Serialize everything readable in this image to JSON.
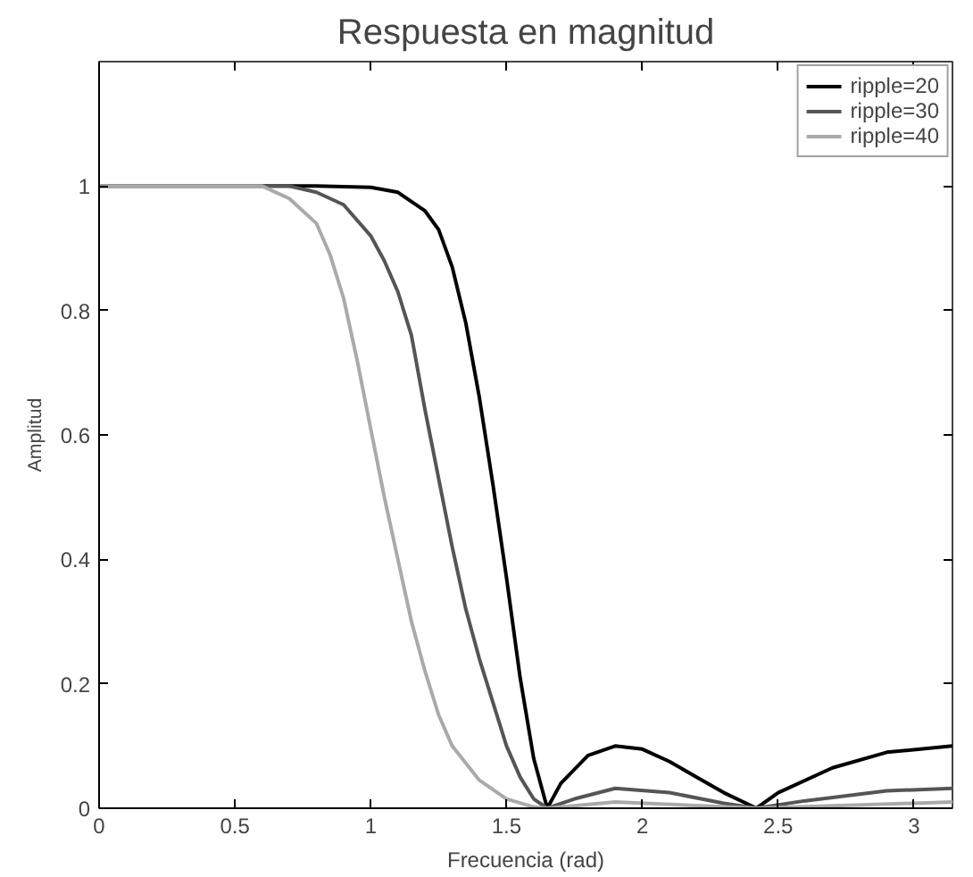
{
  "chart_data": {
    "type": "line",
    "title": "Respuesta en magnitud",
    "xlabel": "Frecuencia (rad)",
    "ylabel": "Amplitud",
    "xlim": [
      0,
      3.1416
    ],
    "ylim": [
      0,
      1.2
    ],
    "xticks": [
      0,
      0.5,
      1,
      1.5,
      2,
      2.5,
      3
    ],
    "yticks": [
      0,
      0.2,
      0.4,
      0.6,
      0.8,
      1
    ],
    "grid": false,
    "legend": "top right",
    "line_style": "solid",
    "marker": "none",
    "series": [
      {
        "name": "ripple=20",
        "color": "#000000",
        "x": [
          0,
          0.8,
          1.0,
          1.1,
          1.2,
          1.25,
          1.3,
          1.35,
          1.4,
          1.45,
          1.5,
          1.55,
          1.6,
          1.65,
          1.7,
          1.8,
          1.9,
          2.0,
          2.1,
          2.2,
          2.3,
          2.42,
          2.5,
          2.7,
          2.9,
          3.1416
        ],
        "values": [
          1,
          1,
          0.998,
          0.99,
          0.96,
          0.93,
          0.87,
          0.78,
          0.66,
          0.52,
          0.37,
          0.21,
          0.08,
          0,
          0.04,
          0.085,
          0.1,
          0.095,
          0.075,
          0.05,
          0.025,
          0,
          0.025,
          0.065,
          0.09,
          0.1
        ]
      },
      {
        "name": "ripple=30",
        "color": "#555555",
        "x": [
          0,
          0.7,
          0.8,
          0.9,
          1.0,
          1.05,
          1.1,
          1.15,
          1.2,
          1.25,
          1.3,
          1.35,
          1.4,
          1.45,
          1.5,
          1.55,
          1.6,
          1.65,
          1.75,
          1.9,
          2.1,
          2.3,
          2.42,
          2.6,
          2.9,
          3.1416
        ],
        "values": [
          1,
          1,
          0.99,
          0.97,
          0.92,
          0.88,
          0.83,
          0.76,
          0.64,
          0.53,
          0.42,
          0.32,
          0.24,
          0.17,
          0.1,
          0.05,
          0.015,
          0,
          0.015,
          0.032,
          0.025,
          0.008,
          0,
          0.012,
          0.028,
          0.032
        ]
      },
      {
        "name": "ripple=40",
        "color": "#aaaaaa",
        "x": [
          0,
          0.6,
          0.7,
          0.8,
          0.85,
          0.9,
          0.95,
          1.0,
          1.05,
          1.1,
          1.15,
          1.2,
          1.25,
          1.3,
          1.4,
          1.5,
          1.6,
          1.65,
          1.9,
          2.42,
          3.1416
        ],
        "values": [
          1,
          1,
          0.98,
          0.94,
          0.89,
          0.82,
          0.72,
          0.61,
          0.5,
          0.4,
          0.3,
          0.22,
          0.15,
          0.1,
          0.045,
          0.015,
          0.002,
          0,
          0.01,
          0,
          0.01
        ]
      }
    ]
  }
}
